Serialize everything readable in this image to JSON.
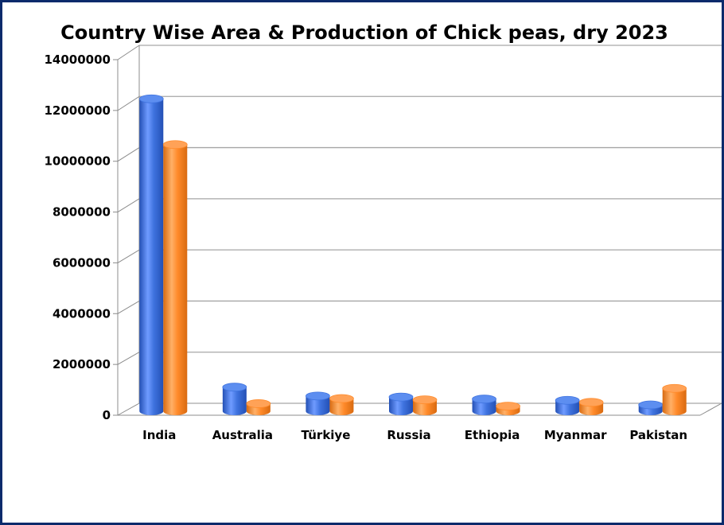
{
  "chart_data": {
    "type": "bar",
    "title": "Country Wise Area & Production of Chick peas, dry 2023",
    "xlabel": "",
    "ylabel": "",
    "categories": [
      "India",
      "Australia",
      "Türkiye",
      "Russia",
      "Ethiopia",
      "Myanmar",
      "Pakistan"
    ],
    "series": [
      {
        "values": [
          12300000,
          950000,
          600000,
          560000,
          480000,
          430000,
          250000
        ]
      },
      {
        "values": [
          10500000,
          300000,
          500000,
          450000,
          200000,
          350000,
          900000
        ]
      }
    ],
    "ylim": [
      0,
      14000000
    ],
    "yticks": [
      0,
      2000000,
      4000000,
      6000000,
      8000000,
      10000000,
      12000000,
      14000000
    ],
    "grid": true,
    "legend": "none"
  },
  "colors": {
    "series_1": "#3f73df",
    "series_2": "#ff8a2a",
    "frame": "#0b2a6b",
    "grid": "#a6a6a6"
  }
}
